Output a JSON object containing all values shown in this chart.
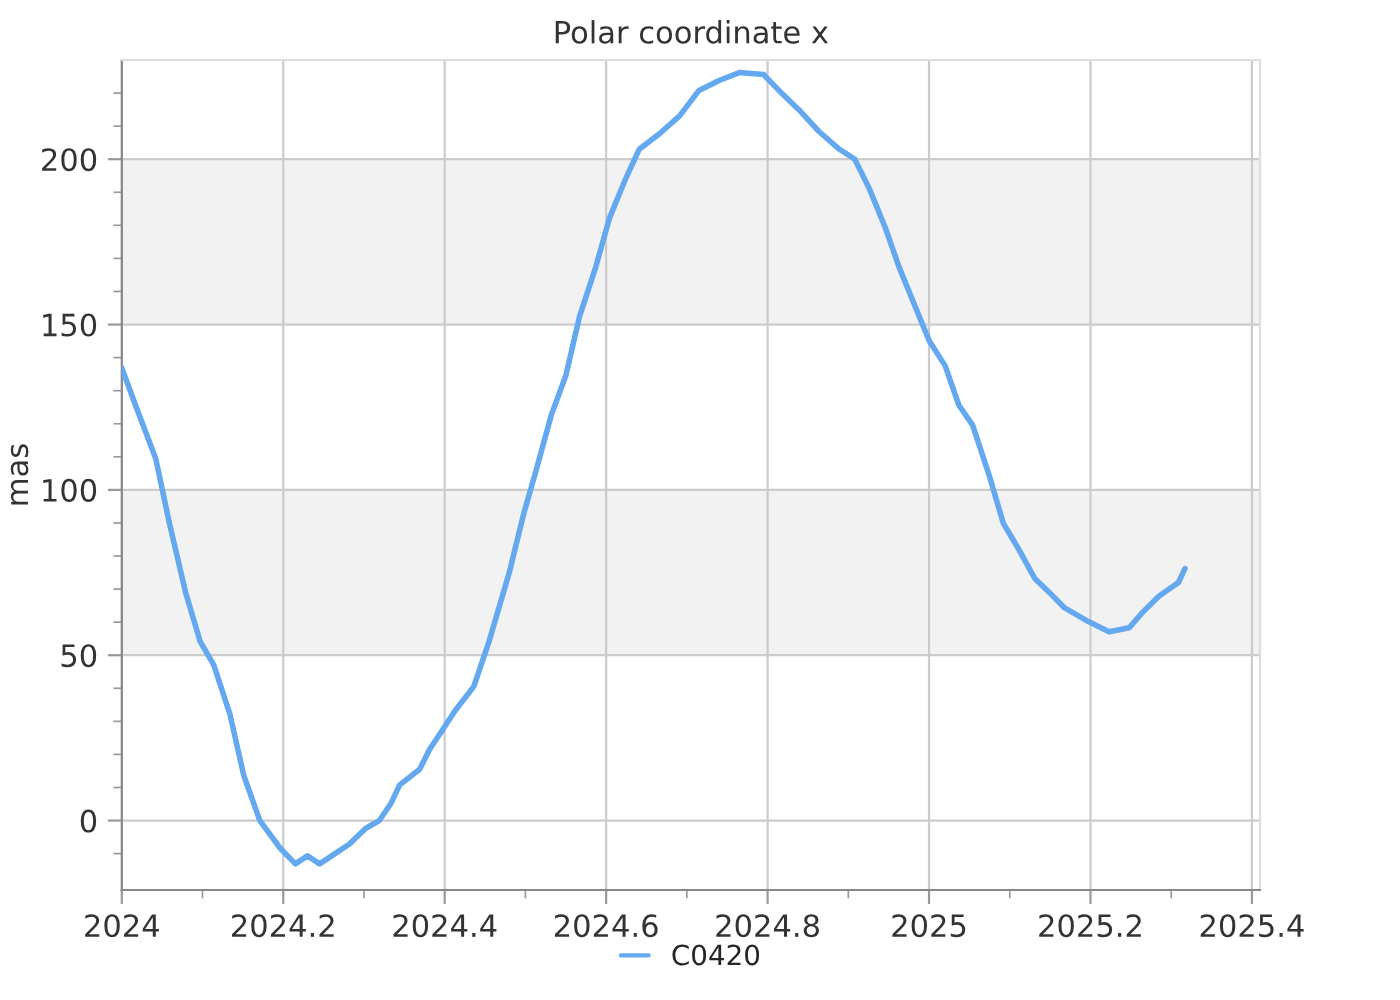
{
  "chart_data": {
    "type": "line",
    "title": "Polar coordinate x",
    "ylabel": "mas",
    "xlim": [
      2024,
      2025.41
    ],
    "ylim": [
      -21,
      230
    ],
    "xticks": [
      {
        "value": 2024,
        "label": "2024"
      },
      {
        "value": 2024.1,
        "label": null
      },
      {
        "value": 2024.2,
        "label": "2024.2"
      },
      {
        "value": 2024.3,
        "label": null
      },
      {
        "value": 2024.4,
        "label": "2024.4"
      },
      {
        "value": 2024.5,
        "label": null
      },
      {
        "value": 2024.6,
        "label": "2024.6"
      },
      {
        "value": 2024.7,
        "label": null
      },
      {
        "value": 2024.8,
        "label": "2024.8"
      },
      {
        "value": 2024.9,
        "label": null
      },
      {
        "value": 2025,
        "label": "2025"
      },
      {
        "value": 2025.1,
        "label": null
      },
      {
        "value": 2025.2,
        "label": "2025.2"
      },
      {
        "value": 2025.3,
        "label": null
      },
      {
        "value": 2025.4,
        "label": "2025.4"
      }
    ],
    "yticks": [
      {
        "value": -10,
        "label": null
      },
      0,
      {
        "value": 10,
        "label": null
      },
      {
        "value": 20,
        "label": null
      },
      {
        "value": 30,
        "label": null
      },
      {
        "value": 40,
        "label": null
      },
      50,
      {
        "value": 60,
        "label": null
      },
      {
        "value": 70,
        "label": null
      },
      {
        "value": 80,
        "label": null
      },
      {
        "value": 90,
        "label": null
      },
      100,
      {
        "value": 110,
        "label": null
      },
      {
        "value": 120,
        "label": null
      },
      {
        "value": 130,
        "label": null
      },
      {
        "value": 140,
        "label": null
      },
      150,
      {
        "value": 160,
        "label": null
      },
      {
        "value": 170,
        "label": null
      },
      {
        "value": 180,
        "label": null
      },
      {
        "value": 190,
        "label": null
      },
      200,
      {
        "value": 210,
        "label": null
      },
      {
        "value": 220,
        "label": null
      }
    ],
    "grid": true,
    "legend": "bottom",
    "marker": "none",
    "line_style": "solid",
    "bands": [
      {
        "axis": "y",
        "from": 50,
        "to": 100,
        "color": "#f2f2f2"
      },
      {
        "axis": "y",
        "from": 150,
        "to": 200,
        "color": "#f2f2f2"
      }
    ],
    "series": [
      {
        "name": "C0420",
        "color": "#64a8f0",
        "x": [
          2024.0,
          2024.017,
          2024.042,
          2024.059,
          2024.079,
          2024.097,
          2024.114,
          2024.134,
          2024.151,
          2024.171,
          2024.196,
          2024.215,
          2024.23,
          2024.245,
          2024.26,
          2024.282,
          2024.302,
          2024.319,
          2024.334,
          2024.344,
          2024.369,
          2024.381,
          2024.394,
          2024.413,
          2024.436,
          2024.455,
          2024.48,
          2024.498,
          2024.512,
          2024.532,
          2024.55,
          2024.567,
          2024.587,
          2024.604,
          2024.624,
          2024.641,
          2024.666,
          2024.691,
          2024.715,
          2024.74,
          2024.765,
          2024.795,
          2024.814,
          2024.839,
          2024.864,
          2024.889,
          2024.908,
          2024.926,
          2024.946,
          2024.963,
          2024.983,
          2025.0,
          2025.02,
          2025.037,
          2025.054,
          2025.074,
          2025.092,
          2025.111,
          2025.131,
          2025.149,
          2025.168,
          2025.198,
          2025.223,
          2025.248,
          2025.265,
          2025.285,
          2025.309,
          2025.317
        ],
        "values": [
          136.9,
          125.6,
          109.5,
          89.9,
          69.0,
          54.2,
          47.0,
          32.1,
          13.7,
          0,
          -8.3,
          -13.1,
          -10.7,
          -13.1,
          -10.7,
          -7.1,
          -2.4,
          0,
          5.4,
          10.7,
          15.5,
          21.4,
          26.2,
          33.3,
          40.5,
          54.2,
          75.0,
          92.9,
          104.8,
          122.6,
          134.5,
          152.4,
          167.3,
          182.1,
          194.0,
          203.0,
          207.7,
          213.1,
          220.8,
          223.8,
          226.2,
          225.6,
          220.8,
          214.9,
          208.3,
          203.0,
          200,
          191.1,
          179.2,
          167.3,
          155.4,
          145.2,
          137.5,
          125.6,
          119.6,
          104.8,
          89.9,
          82.1,
          73.2,
          69.0,
          64.3,
          60.1,
          57.1,
          58.3,
          63.1,
          67.9,
          72.0,
          76.2
        ]
      }
    ]
  }
}
